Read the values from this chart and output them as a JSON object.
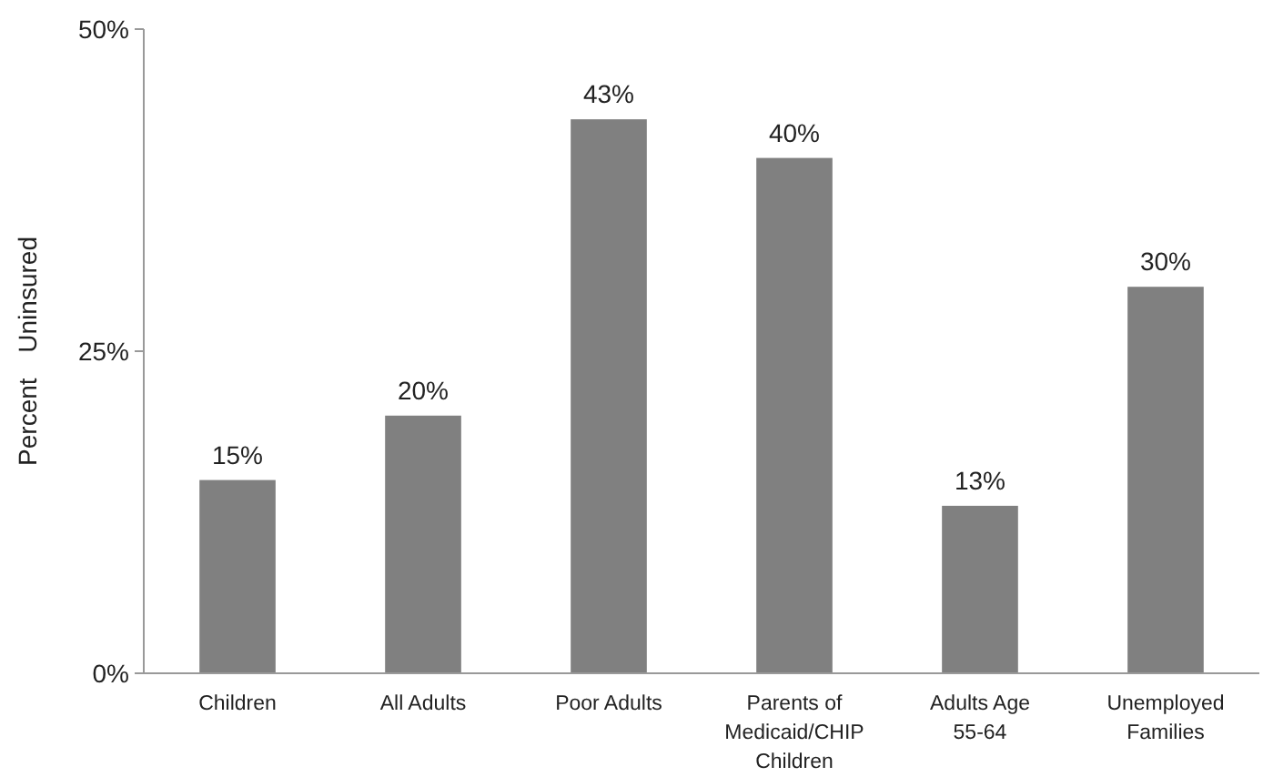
{
  "chart_data": {
    "type": "bar",
    "ylabel": "Percent Uninsured",
    "categories": [
      "Children",
      "All Adults",
      "Poor Adults",
      "Parents of Medicaid/CHIP Children",
      "Adults Age 55-64",
      "Unemployed Families"
    ],
    "values": [
      15,
      20,
      43,
      40,
      13,
      30
    ],
    "value_labels": [
      "15%",
      "20%",
      "43%",
      "40%",
      "13%",
      "30%"
    ],
    "color": "#808080",
    "ylim": [
      0,
      50
    ],
    "yticks": [
      {
        "value": 0,
        "label": "0%"
      },
      {
        "value": 25,
        "label": "25%"
      },
      {
        "value": 50,
        "label": "50%"
      }
    ],
    "grid": false
  }
}
